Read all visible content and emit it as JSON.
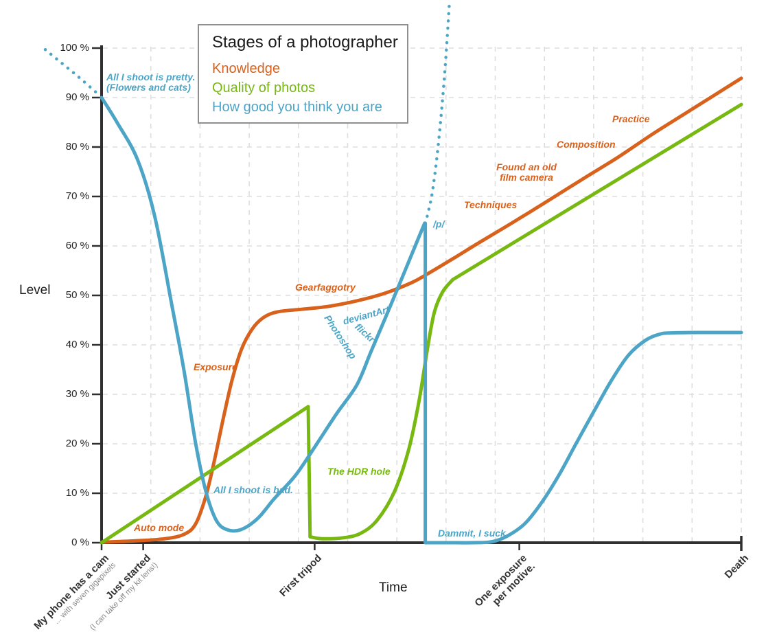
{
  "chart_data": {
    "type": "line",
    "title": "Stages of a photographer",
    "x_axis": {
      "title": "Time",
      "range": [
        0,
        100
      ],
      "grid": true,
      "grid_divisions": 13,
      "ticks": [
        {
          "t": 0,
          "label": "My phone has a cam",
          "sub": "... with seven gigapixels"
        },
        {
          "t": 6.5,
          "label": "Just started",
          "sub": "(I can take off my kit lens!)"
        },
        {
          "t": 33.3,
          "label": "First tripod"
        },
        {
          "t": 65.3,
          "label": "One exposure",
          "label2": "per motive."
        },
        {
          "t": 100,
          "label": "Death"
        }
      ]
    },
    "y_axis": {
      "title": "Level",
      "range": [
        0,
        100
      ],
      "grid": true,
      "tick_step": 10,
      "tick_labels": [
        "0 %",
        "10 %",
        "20 %",
        "30 %",
        "40 %",
        "50 %",
        "60 %",
        "70 %",
        "80 %",
        "90 %",
        "100 %"
      ]
    },
    "legend": {
      "position": "top-center",
      "border": true
    },
    "series": [
      {
        "name": "Knowledge",
        "color": "#d8611c",
        "paths": [
          {
            "dash": false,
            "smooth": true,
            "points": [
              [
                0,
                0.1
              ],
              [
                5.6,
                0.4
              ],
              [
                9.9,
                0.8
              ],
              [
                12.9,
                1.7
              ],
              [
                14.7,
                3.8
              ],
              [
                16.3,
                9.4
              ],
              [
                17.6,
                16.4
              ],
              [
                19,
                25
              ],
              [
                20.4,
                32.9
              ],
              [
                21.9,
                39.2
              ],
              [
                23.6,
                43.3
              ],
              [
                25.4,
                45.6
              ],
              [
                27.6,
                46.7
              ],
              [
                31.3,
                47.2
              ],
              [
                35.6,
                47.8
              ],
              [
                39.9,
                48.9
              ],
              [
                44.2,
                50.4
              ],
              [
                48.5,
                52.6
              ],
              [
                50.9,
                54.3
              ],
              [
                54.9,
                57.4
              ],
              [
                59.2,
                60.8
              ],
              [
                64.6,
                65
              ],
              [
                70,
                69.3
              ],
              [
                75.3,
                73.6
              ],
              [
                80.7,
                77.9
              ],
              [
                86.1,
                82.6
              ],
              [
                91.4,
                86.9
              ],
              [
                95.7,
                90.4
              ],
              [
                100,
                93.9
              ]
            ]
          }
        ]
      },
      {
        "name": "Quality of photos",
        "color": "#77b811",
        "paths": [
          {
            "dash": false,
            "smooth": false,
            "points": [
              [
                0,
                0
              ],
              [
                32.3,
                27.5
              ]
            ]
          },
          {
            "dash": false,
            "smooth": false,
            "points": [
              [
                32.3,
                27.5
              ],
              [
                32.6,
                1.2
              ]
            ]
          },
          {
            "dash": false,
            "smooth": true,
            "points": [
              [
                32.6,
                1.2
              ],
              [
                34.5,
                0.8
              ],
              [
                37.8,
                1
              ],
              [
                40.5,
                1.9
              ],
              [
                43.1,
                4.6
              ],
              [
                45.8,
                10.4
              ],
              [
                48,
                18.8
              ],
              [
                49.6,
                28.5
              ],
              [
                50.9,
                38.9
              ],
              [
                52,
                46.5
              ],
              [
                53.3,
                50.7
              ],
              [
                54.9,
                53.2
              ]
            ]
          },
          {
            "dash": false,
            "smooth": false,
            "points": [
              [
                54.9,
                53.2
              ],
              [
                100,
                88.6
              ]
            ]
          }
        ]
      },
      {
        "name": "How good you think you are",
        "color": "#4ca5c6",
        "paths": [
          {
            "dash": true,
            "smooth": true,
            "points": [
              [
                -8.8,
                99.7
              ],
              [
                -5.7,
                96.4
              ],
              [
                -3,
                93.5
              ],
              [
                -0.2,
                90.3
              ]
            ]
          },
          {
            "dash": false,
            "smooth": true,
            "points": [
              [
                0,
                90
              ],
              [
                2.4,
                85
              ],
              [
                5.6,
                77.5
              ],
              [
                8.3,
                66
              ],
              [
                10.9,
                48.6
              ],
              [
                12.9,
                34.7
              ],
              [
                14.7,
                20.1
              ],
              [
                16.3,
                10.4
              ],
              [
                17.9,
                4.6
              ],
              [
                19.5,
                2.7
              ],
              [
                21.7,
                2.6
              ],
              [
                24.4,
                4.9
              ],
              [
                27,
                8.9
              ],
              [
                30.3,
                13.6
              ],
              [
                33.5,
                19.7
              ],
              [
                36.7,
                26
              ],
              [
                39.9,
                31.9
              ],
              [
                42.1,
                38.6
              ],
              [
                44.7,
                46.5
              ],
              [
                47.4,
                54.9
              ],
              [
                49.6,
                61.8
              ],
              [
                50.5,
                64.6
              ]
            ]
          },
          {
            "dash": false,
            "smooth": false,
            "points": [
              [
                50.6,
                64.6
              ],
              [
                50.6,
                0
              ]
            ]
          },
          {
            "dash": false,
            "smooth": true,
            "points": [
              [
                50.6,
                0
              ],
              [
                54,
                0
              ],
              [
                58,
                0
              ],
              [
                61,
                0.2
              ],
              [
                63.5,
                1.4
              ],
              [
                66.2,
                3.9
              ],
              [
                68.9,
                8.3
              ],
              [
                71.6,
                13.9
              ],
              [
                74.2,
                20.1
              ],
              [
                76.9,
                26.4
              ],
              [
                79.6,
                32.6
              ],
              [
                82.3,
                37.8
              ],
              [
                85,
                40.9
              ],
              [
                87.1,
                42.1
              ],
              [
                88.7,
                42.4
              ],
              [
                93.6,
                42.5
              ],
              [
                100,
                42.5
              ]
            ]
          },
          {
            "dash": true,
            "smooth": true,
            "points": [
              [
                50.9,
                66
              ],
              [
                51.7,
                70.8
              ],
              [
                52.6,
                80
              ],
              [
                53.6,
                94.4
              ],
              [
                54.4,
                109.7
              ]
            ]
          }
        ]
      }
    ],
    "annotations": {
      "pretty_line1": "All I shoot is pretty.",
      "pretty_line2": "(Flowers and cats)",
      "auto_mode": "Auto mode",
      "exposure": "Exposure",
      "all_bad": "All I shoot is bad.",
      "gearfaggotry": "Gearfaggotry",
      "hdr_hole": "The HDR hole",
      "deviantart": "deviantArt",
      "flickr": "flickr",
      "photoshop": "Photoshop",
      "p_board": "/p/",
      "dammit": "Dammit, I suck",
      "techniques": "Techniques",
      "film_camera_line1": "Found an old",
      "film_camera_line2": "film camera",
      "composition": "Composition",
      "practice": "Practice"
    }
  }
}
